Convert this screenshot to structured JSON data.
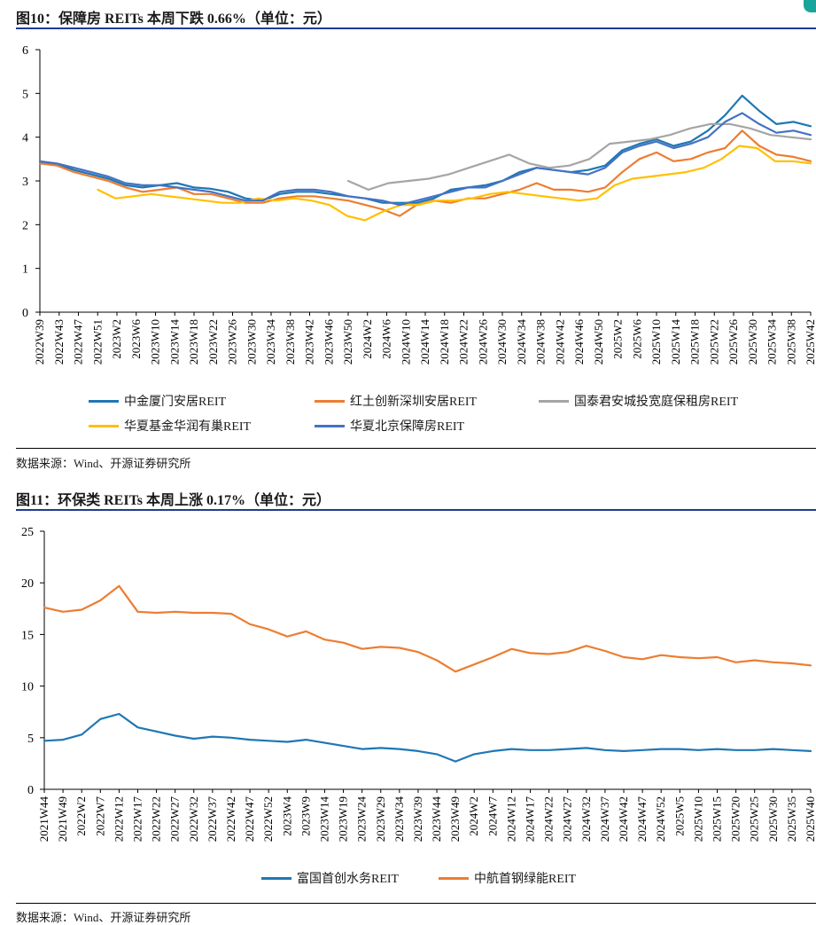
{
  "figures": [
    {
      "title": "图10：保障房 REITs 本周下跌 0.66%（单位：元）",
      "source": "数据来源：Wind、开源证券研究所"
    },
    {
      "title": "图11：环保类 REITs 本周上涨 0.17%（单位：元）",
      "source": "数据来源：Wind、开源证券研究所"
    }
  ],
  "chart_data": [
    {
      "type": "line",
      "title": "保障房 REITs 本周下跌 0.66%（单位：元）",
      "ylim": [
        0,
        6
      ],
      "yticks": [
        0,
        1,
        2,
        3,
        4,
        5,
        6
      ],
      "x_tick_labels": [
        "2022W39",
        "2022W43",
        "2022W47",
        "2022W51",
        "2023W2",
        "2023W6",
        "2023W10",
        "2023W14",
        "2023W18",
        "2023W22",
        "2023W26",
        "2023W30",
        "2023W34",
        "2023W38",
        "2023W42",
        "2023W46",
        "2023W50",
        "2024W2",
        "2024W6",
        "2024W10",
        "2024W14",
        "2024W18",
        "2024W22",
        "2024W26",
        "2024W30",
        "2024W34",
        "2024W38",
        "2024W42",
        "2024W46",
        "2024W50",
        "2025W2",
        "2025W6",
        "2025W10",
        "2025W14",
        "2025W18",
        "2025W22",
        "2025W26",
        "2025W30",
        "2025W34",
        "2025W38",
        "2025W42"
      ],
      "legend_position": "bottom",
      "series": [
        {
          "name": "中金厦门安居REIT",
          "color": "#1f77b4",
          "start": 0,
          "values": [
            3.42,
            3.38,
            3.25,
            3.15,
            3.05,
            2.9,
            2.85,
            2.9,
            2.95,
            2.85,
            2.82,
            2.75,
            2.6,
            2.55,
            2.7,
            2.75,
            2.75,
            2.7,
            2.65,
            2.6,
            2.5,
            2.5,
            2.5,
            2.6,
            2.8,
            2.85,
            2.9,
            3.0,
            3.2,
            3.3,
            3.25,
            3.2,
            3.25,
            3.35,
            3.7,
            3.85,
            3.95,
            3.8,
            3.9,
            4.15,
            4.5,
            4.95,
            4.6,
            4.3,
            4.35,
            4.25
          ]
        },
        {
          "name": "红土创新深圳安居REIT",
          "color": "#ed7d31",
          "start": 0,
          "values": [
            3.4,
            3.35,
            3.2,
            3.1,
            3.0,
            2.85,
            2.75,
            2.8,
            2.85,
            2.7,
            2.7,
            2.6,
            2.5,
            2.5,
            2.6,
            2.65,
            2.65,
            2.6,
            2.55,
            2.45,
            2.35,
            2.2,
            2.45,
            2.55,
            2.5,
            2.6,
            2.6,
            2.7,
            2.8,
            2.95,
            2.8,
            2.8,
            2.75,
            2.85,
            3.2,
            3.5,
            3.65,
            3.45,
            3.5,
            3.65,
            3.75,
            4.15,
            3.8,
            3.6,
            3.55,
            3.45
          ]
        },
        {
          "name": "国泰君安城投宽庭保租房REIT",
          "color": "#a5a5a5",
          "start": 16,
          "values": [
            3.0,
            2.8,
            2.95,
            3.0,
            3.05,
            3.15,
            3.3,
            3.45,
            3.6,
            3.4,
            3.3,
            3.35,
            3.5,
            3.85,
            3.9,
            3.95,
            4.05,
            4.2,
            4.3,
            4.3,
            4.2,
            4.05,
            4.0,
            3.95
          ]
        },
        {
          "name": "华夏基金华润有巢REIT",
          "color": "#ffc000",
          "start": 3,
          "values": [
            2.8,
            2.6,
            2.65,
            2.7,
            2.65,
            2.6,
            2.55,
            2.5,
            2.5,
            2.6,
            2.55,
            2.6,
            2.55,
            2.45,
            2.2,
            2.1,
            2.3,
            2.45,
            2.45,
            2.55,
            2.55,
            2.6,
            2.7,
            2.75,
            2.7,
            2.65,
            2.6,
            2.55,
            2.6,
            2.9,
            3.05,
            3.1,
            3.15,
            3.2,
            3.3,
            3.5,
            3.8,
            3.75,
            3.45,
            3.45,
            3.4
          ]
        },
        {
          "name": "华夏北京保障房REIT",
          "color": "#4472c4",
          "start": 0,
          "values": [
            3.45,
            3.4,
            3.3,
            3.2,
            3.1,
            2.95,
            2.9,
            2.9,
            2.85,
            2.8,
            2.75,
            2.65,
            2.55,
            2.55,
            2.75,
            2.8,
            2.8,
            2.75,
            2.65,
            2.6,
            2.55,
            2.45,
            2.55,
            2.65,
            2.75,
            2.85,
            2.85,
            3.0,
            3.15,
            3.3,
            3.25,
            3.2,
            3.15,
            3.3,
            3.65,
            3.8,
            3.9,
            3.75,
            3.85,
            4.0,
            4.35,
            4.55,
            4.3,
            4.1,
            4.15,
            4.05
          ]
        }
      ]
    },
    {
      "type": "line",
      "title": "环保类 REITs 本周上涨 0.17%（单位：元）",
      "ylim": [
        0,
        25
      ],
      "yticks": [
        0,
        5,
        10,
        15,
        20,
        25
      ],
      "x_tick_labels": [
        "2021W44",
        "2021W49",
        "2022W2",
        "2022W7",
        "2022W12",
        "2022W17",
        "2022W22",
        "2022W27",
        "2022W32",
        "2022W37",
        "2022W42",
        "2022W47",
        "2022W52",
        "2023W4",
        "2023W9",
        "2023W14",
        "2023W19",
        "2023W24",
        "2023W29",
        "2023W34",
        "2023W39",
        "2023W44",
        "2023W49",
        "2024W2",
        "2024W7",
        "2024W12",
        "2024W17",
        "2024W22",
        "2024W27",
        "2024W32",
        "2024W37",
        "2024W42",
        "2024W47",
        "2024W52",
        "2025W5",
        "2025W10",
        "2025W15",
        "2025W20",
        "2025W25",
        "2025W30",
        "2025W35",
        "2025W40"
      ],
      "legend_position": "bottom",
      "series": [
        {
          "name": "富国首创水务REIT",
          "color": "#1f77b4",
          "start": 0,
          "values": [
            4.7,
            4.8,
            5.3,
            6.8,
            7.3,
            6.0,
            5.6,
            5.2,
            4.9,
            5.1,
            5.0,
            4.8,
            4.7,
            4.6,
            4.8,
            4.5,
            4.2,
            3.9,
            4.0,
            3.9,
            3.7,
            3.4,
            2.7,
            3.4,
            3.7,
            3.9,
            3.8,
            3.8,
            3.9,
            4.0,
            3.8,
            3.7,
            3.8,
            3.9,
            3.9,
            3.8,
            3.9,
            3.8,
            3.8,
            3.9,
            3.8,
            3.7
          ]
        },
        {
          "name": "中航首钢绿能REIT",
          "color": "#ed7d31",
          "start": 0,
          "values": [
            17.6,
            17.2,
            17.4,
            18.3,
            19.7,
            17.2,
            17.1,
            17.2,
            17.1,
            17.1,
            17.0,
            16.0,
            15.5,
            14.8,
            15.3,
            14.5,
            14.2,
            13.6,
            13.8,
            13.7,
            13.3,
            12.5,
            11.4,
            12.1,
            12.8,
            13.6,
            13.2,
            13.1,
            13.3,
            13.9,
            13.4,
            12.8,
            12.6,
            13.0,
            12.8,
            12.7,
            12.8,
            12.3,
            12.5,
            12.3,
            12.2,
            12.0
          ]
        }
      ]
    }
  ]
}
